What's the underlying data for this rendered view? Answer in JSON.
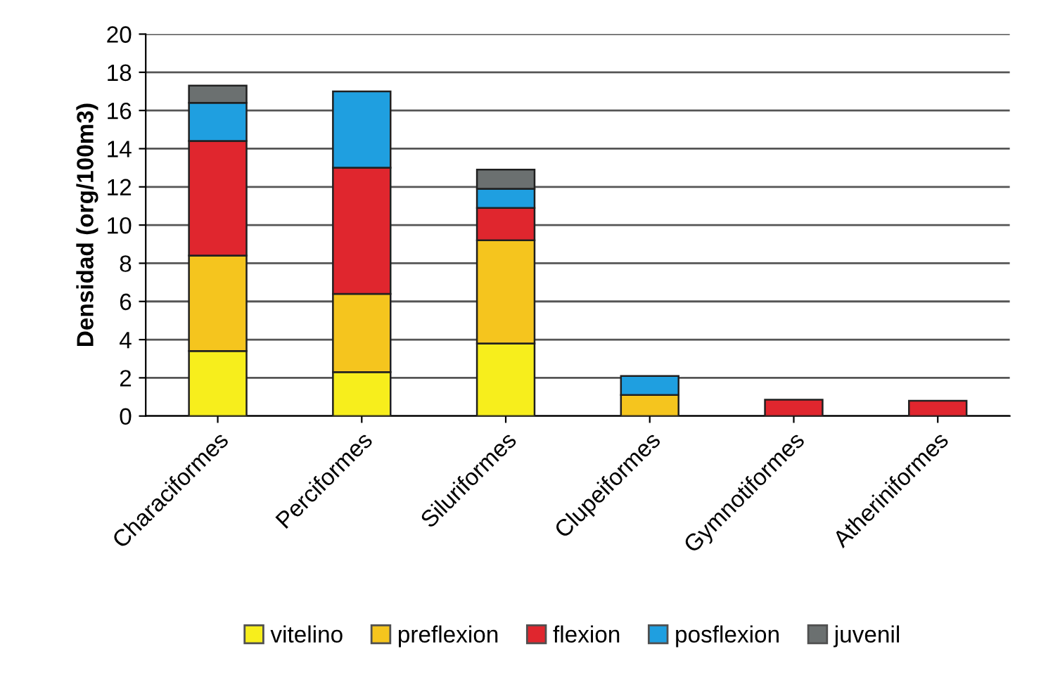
{
  "chart_data": {
    "type": "bar",
    "stacked": true,
    "ylabel": "Densidad (org/100m3)",
    "categories": [
      "Characiformes",
      "Perciformes",
      "Siluriformes",
      "Clupeiformes",
      "Gymnotiformes",
      "Atheriniformes"
    ],
    "series": [
      {
        "name": "vitelino",
        "color": "#f7ee1c",
        "values": [
          3.4,
          2.3,
          3.8,
          null,
          null,
          null
        ]
      },
      {
        "name": "preflexion",
        "color": "#f5c51e",
        "values": [
          5.0,
          4.1,
          5.4,
          1.1,
          null,
          null
        ]
      },
      {
        "name": "flexion",
        "color": "#e0262e",
        "values": [
          6.0,
          6.6,
          1.7,
          null,
          0.85,
          0.8
        ]
      },
      {
        "name": "posflexion",
        "color": "#1f9fe0",
        "values": [
          2.0,
          4.0,
          1.0,
          1.0,
          null,
          null
        ]
      },
      {
        "name": "juvenil",
        "color": "#6b7070",
        "values": [
          0.9,
          null,
          1.0,
          null,
          null,
          null
        ]
      }
    ],
    "ylim": [
      0,
      20
    ],
    "yticks": [
      0,
      2,
      4,
      6,
      8,
      10,
      12,
      14,
      16,
      18,
      20
    ],
    "grid": "y",
    "legend": "bottom"
  }
}
